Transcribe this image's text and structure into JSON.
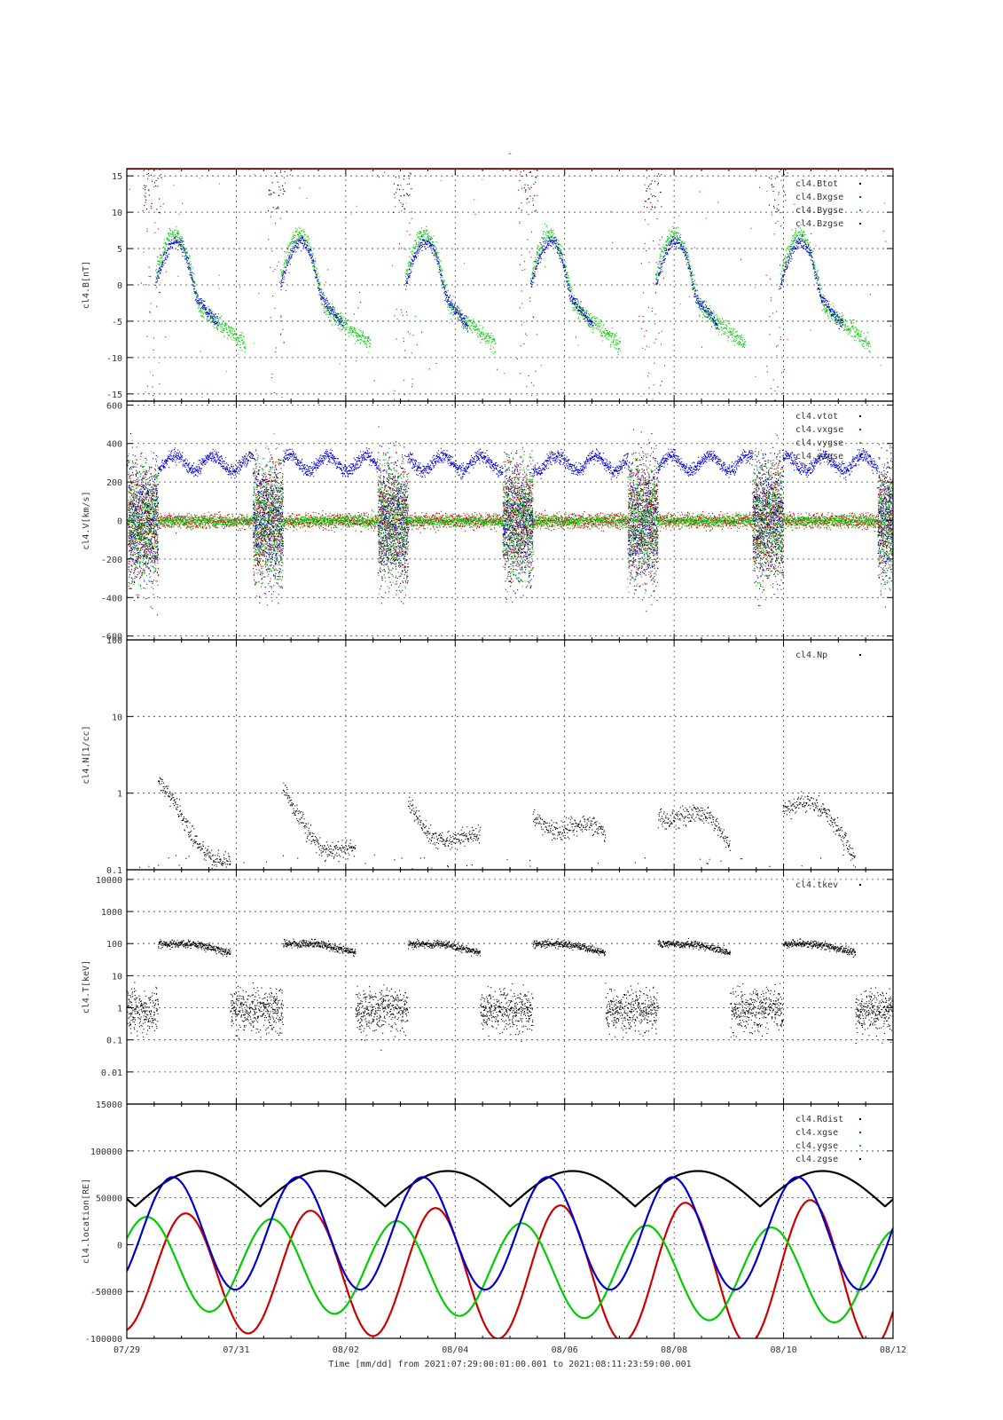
{
  "figure": {
    "top_mark": "-",
    "xlabel": "Time [mm/dd]  from 2021:07:29:00:01:00.001  to  2021:08:11:23:59:00.001",
    "x_tick_labels": [
      "07/29",
      "07/31",
      "08/02",
      "08/04",
      "08/06",
      "08/08",
      "08/10",
      "08/12"
    ],
    "x_range_days": [
      0,
      14
    ],
    "x_unit": "days since 07/29"
  },
  "colors": {
    "black": "#000000",
    "red": "#cc0000",
    "green": "#00cc00",
    "blue": "#0000cc"
  },
  "chart_data": [
    {
      "type": "scatter",
      "ylabel": "cl4.B[nT]",
      "ylim": [
        -16,
        16
      ],
      "yticks": [
        -15,
        -10,
        -5,
        0,
        5,
        10,
        15
      ],
      "ytick_labels": [
        "-15",
        "-10",
        "-5",
        "0",
        "5",
        "10",
        "15"
      ],
      "grid": true,
      "legend_position": "top-right",
      "series": [
        {
          "name": "cl4.Btot",
          "color": "#000000"
        },
        {
          "name": "cl4.Bxgse",
          "color": "#cc0000"
        },
        {
          "name": "cl4.Bygse",
          "color": "#00cc00"
        },
        {
          "name": "cl4.Bzgse",
          "color": "#0000cc"
        }
      ]
    },
    {
      "type": "scatter",
      "ylabel": "cl4.V[km/s]",
      "ylim": [
        -620,
        620
      ],
      "yticks": [
        -600,
        -400,
        -200,
        0,
        200,
        400,
        600
      ],
      "ytick_labels": [
        "-600",
        "-400",
        "-200",
        "0",
        "200",
        "400",
        "600"
      ],
      "grid": true,
      "legend_position": "top-right",
      "series": [
        {
          "name": "cl4.vtot",
          "color": "#000000"
        },
        {
          "name": "cl4.vxgse",
          "color": "#cc0000"
        },
        {
          "name": "cl4.vygse",
          "color": "#00cc00"
        },
        {
          "name": "cl4.vzgse",
          "color": "#0000cc"
        }
      ]
    },
    {
      "type": "scatter",
      "ylabel": "cl4.N[1/cc]",
      "yscale": "log",
      "ylim": [
        0.1,
        100
      ],
      "yticks": [
        0.1,
        1,
        10,
        100
      ],
      "ytick_labels": [
        "0.1",
        "1",
        "10",
        "100"
      ],
      "grid": true,
      "legend_position": "top-right",
      "series": [
        {
          "name": "cl4.Np",
          "color": "#000000"
        }
      ]
    },
    {
      "type": "scatter",
      "ylabel": "cl4.T[keV]",
      "yscale": "log",
      "ylim": [
        0.001,
        20000
      ],
      "yticks": [
        0.01,
        0.1,
        1,
        10,
        100,
        1000,
        10000
      ],
      "ytick_labels": [
        "0.01",
        "0.1",
        "1",
        "10",
        "100",
        "1000",
        "10000"
      ],
      "ytick_overlap_label": "15000",
      "grid": true,
      "legend_position": "top-right",
      "series": [
        {
          "name": "cl4.tkev",
          "color": "#000000"
        }
      ]
    },
    {
      "type": "line",
      "ylabel": "cl4.location[RE]",
      "ylim": [
        -100000,
        150000
      ],
      "yticks": [
        -100000,
        -50000,
        0,
        50000,
        100000
      ],
      "ytick_labels": [
        "-100000",
        "-50000",
        "0",
        "50000",
        "100000"
      ],
      "grid": true,
      "legend_position": "top-right",
      "series": [
        {
          "name": "cl4.Rdist",
          "color": "#000000"
        },
        {
          "name": "cl4.xgse",
          "color": "#cc0000"
        },
        {
          "name": "cl4.ygse",
          "color": "#00cc00"
        },
        {
          "name": "cl4.zgse",
          "color": "#0000cc"
        }
      ]
    }
  ]
}
